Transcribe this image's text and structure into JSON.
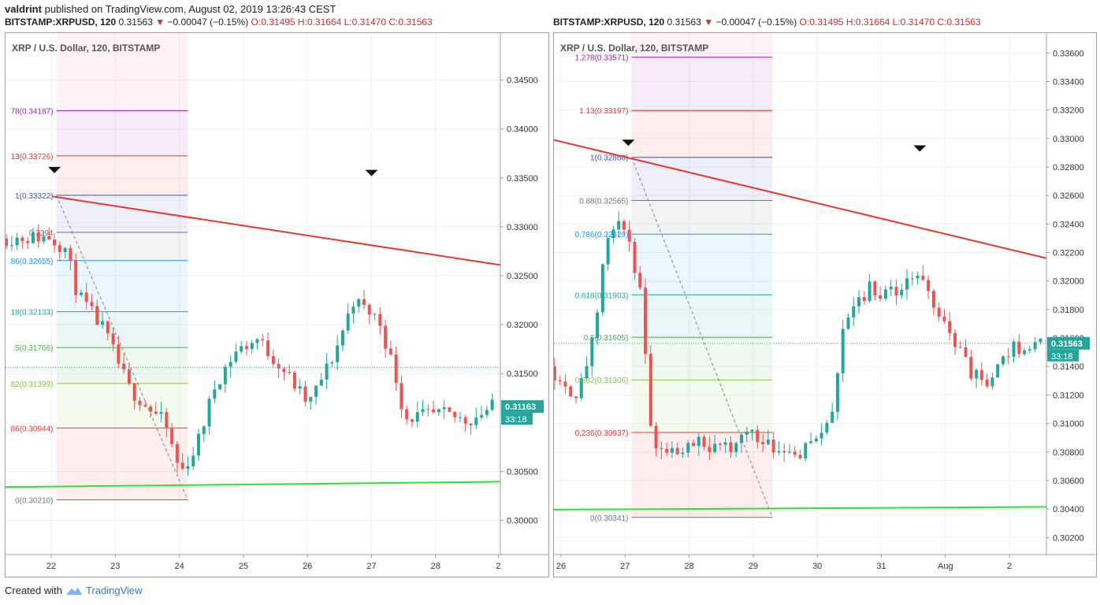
{
  "header": {
    "author": "valdrint",
    "published": "published on TradingView.com, August 02, 2019 13:26:43 CEST"
  },
  "legend_left": {
    "symbol": "BITSTAMP:XRPUSD, 120",
    "last": "0.31563",
    "change": "−0.00047 (−0.15%)",
    "ohlc": "O:0.31495 H:0.31664 L:0.31470 C:0.31563"
  },
  "legend_right": {
    "symbol": "BITSTAMP:XRPUSD, 120",
    "last": "0.31563",
    "change": "−0.00047 (−0.15%)",
    "ohlc": "O:0.31495 H:0.31664 L:0.31470 C:0.31563"
  },
  "footer": {
    "created_with": "Created with",
    "brand": "TradingView"
  },
  "colors": {
    "up": "#26a69a",
    "down": "#ef5350",
    "trend": "#e53935",
    "support": "#33e033"
  },
  "chart_data": [
    {
      "type": "candlestick",
      "title": "XRP / U.S. Dollar, 120, BITSTAMP",
      "x_ticks": [
        "22",
        "23",
        "24",
        "25",
        "26",
        "27",
        "28",
        "2"
      ],
      "y_ticks": [
        "0.34500",
        "0.34000",
        "0.33500",
        "0.33000",
        "0.32500",
        "0.32000",
        "0.31500",
        "0.30500",
        "0.30000"
      ],
      "ylim": [
        0.2965,
        0.3498
      ],
      "price_label": "0.31163",
      "countdown": "33:18",
      "fib_levels": [
        {
          "text": "78(0.34187)",
          "value": 0.34187,
          "color": "#9c27b0"
        },
        {
          "text": "13(0.33726)",
          "value": 0.33726,
          "color": "#e53935"
        },
        {
          "text": "1(0.33322)",
          "value": 0.33322,
          "color": "#3f51b5"
        },
        {
          "text": "0.3294",
          "value": 0.32943,
          "color": "#757575"
        },
        {
          "text": "86(0.32655)",
          "value": 0.32655,
          "color": "#2196f3"
        },
        {
          "text": "18(0.32133)",
          "value": 0.32133,
          "color": "#26a69a"
        },
        {
          "text": ".5(0.31766)",
          "value": 0.31766,
          "color": "#4caf50"
        },
        {
          "text": "82(0.31399)",
          "value": 0.31399,
          "color": "#8bc34a"
        },
        {
          "text": "86(0.30944)",
          "value": 0.30944,
          "color": "#e53935"
        },
        {
          "text": "0(0.30210)",
          "value": 0.3021,
          "color": "#757575"
        }
      ]
    },
    {
      "type": "candlestick",
      "title": "XRP / U.S. Dollar, 120, BITSTAMP",
      "x_ticks": [
        "26",
        "27",
        "28",
        "29",
        "30",
        "31",
        "Aug",
        "2"
      ],
      "y_ticks": [
        "0.33600",
        "0.33400",
        "0.33200",
        "0.33000",
        "0.32800",
        "0.32600",
        "0.32400",
        "0.32200",
        "0.32000",
        "0.31800",
        "0.31600",
        "0.31400",
        "0.31200",
        "0.31000",
        "0.30800",
        "0.30600",
        "0.30400",
        "0.30200"
      ],
      "ylim": [
        0.3008,
        0.3374
      ],
      "price_label": "0.31563",
      "countdown": "33:18",
      "fib_levels": [
        {
          "text": "1.278(0.33571)",
          "value": 0.33571,
          "color": "#9c27b0"
        },
        {
          "text": "1.13(0.33197)",
          "value": 0.33197,
          "color": "#e53935"
        },
        {
          "text": "1(0.32868)",
          "value": 0.32868,
          "color": "#3f51b5"
        },
        {
          "text": "0.88(0.32565)",
          "value": 0.32565,
          "color": "#757575"
        },
        {
          "text": "0.786(0.32329)",
          "value": 0.32329,
          "color": "#2196f3"
        },
        {
          "text": "0.618(0.31903)",
          "value": 0.31903,
          "color": "#26a69a"
        },
        {
          "text": "0.5(0.31605)",
          "value": 0.31605,
          "color": "#4caf50"
        },
        {
          "text": "0.382(0.31306)",
          "value": 0.31306,
          "color": "#8bc34a"
        },
        {
          "text": "0.236(0.30937)",
          "value": 0.30937,
          "color": "#e53935"
        },
        {
          "text": "0(0.30341)",
          "value": 0.30341,
          "color": "#757575"
        }
      ]
    }
  ]
}
